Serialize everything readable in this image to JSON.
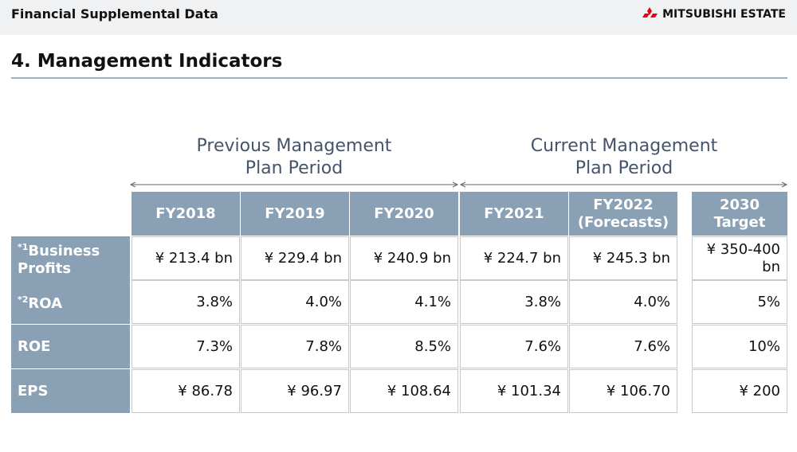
{
  "header": {
    "title": "Financial Supplemental Data",
    "brand": "MITSUBISHI ESTATE"
  },
  "section_title": "4. Management Indicators",
  "periods": [
    {
      "lines": [
        "Previous Management",
        "Plan Period"
      ]
    },
    {
      "lines": [
        "Current Management",
        "Plan Period"
      ]
    }
  ],
  "table": {
    "columns": [
      {
        "lines": [
          "FY2018"
        ]
      },
      {
        "lines": [
          "FY2019"
        ]
      },
      {
        "lines": [
          "FY2020"
        ]
      },
      {
        "lines": [
          "FY2021"
        ]
      },
      {
        "lines": [
          "FY2022",
          "(Forecasts)"
        ]
      },
      {
        "lines": [
          "2030",
          "Target"
        ]
      }
    ],
    "rows": [
      {
        "note": "*1",
        "label": "Business Profits",
        "cells": [
          "¥ 213.4 bn",
          "¥ 229.4 bn",
          "¥ 240.9 bn",
          "¥ 224.7 bn",
          "¥ 245.3 bn",
          "¥ 350-400 bn"
        ]
      },
      {
        "note": "*2",
        "label": "ROA",
        "cells": [
          "3.8%",
          "4.0%",
          "4.1%",
          "3.8%",
          "4.0%",
          "5%"
        ]
      },
      {
        "label": "ROE",
        "cells": [
          "7.3%",
          "7.8%",
          "8.5%",
          "7.6%",
          "7.6%",
          "10%"
        ]
      },
      {
        "label": "EPS",
        "cells": [
          "¥ 86.78",
          "¥ 96.97",
          "¥ 108.64",
          "¥ 101.34",
          "¥ 106.70",
          "¥ 200"
        ]
      }
    ]
  }
}
